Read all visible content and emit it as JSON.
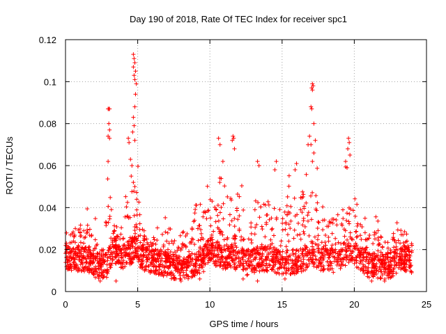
{
  "chart_data": {
    "type": "scatter",
    "title": "Day 190 of 2018, Rate Of TEC Index for receiver spc1",
    "xlabel": "GPS time / hours",
    "ylabel": "ROTI / TECUs",
    "xlim": [
      0,
      25
    ],
    "ylim": [
      0,
      0.12
    ],
    "x_ticks": [
      0,
      5,
      10,
      15,
      20,
      25
    ],
    "x_tick_labels": [
      "0",
      "5",
      "10",
      "15",
      "20",
      "25"
    ],
    "y_ticks": [
      0,
      0.02,
      0.04,
      0.06,
      0.08,
      0.1,
      0.12
    ],
    "y_tick_labels": [
      "0",
      "0.02",
      "0.04",
      "0.06",
      "0.08",
      "0.1",
      "0.12"
    ],
    "grid": true,
    "marker": "plus",
    "color": "#ff0000",
    "series": [
      {
        "name": "ROTI",
        "envelope": {
          "x": [
            0,
            0.5,
            1,
            1.3,
            2,
            2.5,
            2.9,
            3.3,
            3.6,
            4,
            4.4,
            4.8,
            5.2,
            5.6,
            6,
            6.6,
            7,
            7.6,
            8,
            8.6,
            9,
            9.6,
            10,
            10.5,
            11,
            11.6,
            12,
            12.5,
            13,
            13.4,
            14,
            14.5,
            15,
            15.4,
            16,
            16.5,
            17,
            17.4,
            18,
            18.6,
            19,
            19.5,
            19.7,
            20,
            20.4,
            21,
            21.5,
            22,
            22.5,
            23,
            23.5,
            24
          ],
          "peak": [
            0.03,
            0.034,
            0.045,
            0.04,
            0.038,
            0.022,
            0.087,
            0.045,
            0.035,
            0.03,
            0.073,
            0.113,
            0.04,
            0.03,
            0.026,
            0.034,
            0.036,
            0.03,
            0.028,
            0.04,
            0.045,
            0.048,
            0.056,
            0.05,
            0.072,
            0.06,
            0.074,
            0.04,
            0.045,
            0.062,
            0.06,
            0.05,
            0.045,
            0.055,
            0.06,
            0.07,
            0.099,
            0.065,
            0.045,
            0.05,
            0.045,
            0.065,
            0.072,
            0.055,
            0.04,
            0.035,
            0.04,
            0.03,
            0.028,
            0.037,
            0.035,
            0.028
          ],
          "base": [
            0.015,
            0.015,
            0.015,
            0.015,
            0.012,
            0.011,
            0.012,
            0.02,
            0.018,
            0.016,
            0.018,
            0.02,
            0.016,
            0.015,
            0.014,
            0.013,
            0.012,
            0.011,
            0.01,
            0.011,
            0.013,
            0.015,
            0.019,
            0.017,
            0.016,
            0.016,
            0.015,
            0.013,
            0.014,
            0.015,
            0.015,
            0.014,
            0.013,
            0.013,
            0.014,
            0.015,
            0.018,
            0.016,
            0.015,
            0.014,
            0.016,
            0.018,
            0.02,
            0.018,
            0.015,
            0.012,
            0.012,
            0.011,
            0.012,
            0.014,
            0.015,
            0.014
          ]
        },
        "points": [
          [
            3.0,
            0.087
          ],
          [
            2.95,
            0.087
          ],
          [
            3.05,
            0.087
          ],
          [
            3.0,
            0.08
          ],
          [
            3.05,
            0.077
          ],
          [
            2.95,
            0.074
          ],
          [
            3.05,
            0.073
          ],
          [
            2.95,
            0.062
          ],
          [
            4.7,
            0.113
          ],
          [
            4.75,
            0.111
          ],
          [
            4.8,
            0.109
          ],
          [
            4.7,
            0.107
          ],
          [
            4.85,
            0.105
          ],
          [
            4.75,
            0.103
          ],
          [
            4.8,
            0.101
          ],
          [
            4.9,
            0.099
          ],
          [
            4.85,
            0.094
          ],
          [
            4.8,
            0.088
          ],
          [
            4.7,
            0.083
          ],
          [
            4.75,
            0.079
          ],
          [
            4.65,
            0.076
          ],
          [
            4.8,
            0.072
          ],
          [
            4.35,
            0.073
          ],
          [
            4.4,
            0.071
          ],
          [
            4.5,
            0.063
          ],
          [
            4.6,
            0.06
          ],
          [
            4.55,
            0.055
          ],
          [
            4.7,
            0.052
          ],
          [
            4.8,
            0.05
          ],
          [
            17.1,
            0.099
          ],
          [
            17.15,
            0.098
          ],
          [
            17.05,
            0.097
          ],
          [
            17.1,
            0.096
          ],
          [
            17.0,
            0.088
          ],
          [
            17.05,
            0.087
          ],
          [
            17.2,
            0.08
          ],
          [
            17.3,
            0.072
          ],
          [
            16.9,
            0.074
          ],
          [
            17.0,
            0.07
          ],
          [
            17.2,
            0.066
          ],
          [
            17.1,
            0.062
          ],
          [
            16.8,
            0.07
          ],
          [
            11.6,
            0.074
          ],
          [
            11.65,
            0.073
          ],
          [
            11.55,
            0.072
          ],
          [
            11.7,
            0.068
          ],
          [
            10.6,
            0.073
          ],
          [
            10.7,
            0.07
          ],
          [
            10.9,
            0.062
          ],
          [
            19.6,
            0.073
          ],
          [
            19.65,
            0.071
          ],
          [
            19.55,
            0.068
          ],
          [
            19.7,
            0.065
          ],
          [
            19.4,
            0.062
          ],
          [
            19.5,
            0.059
          ],
          [
            13.3,
            0.062
          ],
          [
            13.4,
            0.06
          ],
          [
            14.6,
            0.062
          ],
          [
            14.5,
            0.058
          ],
          [
            16.0,
            0.061
          ],
          [
            15.9,
            0.058
          ],
          [
            2.4,
            0.005
          ],
          [
            3.5,
            0.005
          ],
          [
            7.5,
            0.006
          ],
          [
            8.0,
            0.005
          ],
          [
            9.3,
            0.006
          ],
          [
            12.3,
            0.006
          ],
          [
            13.3,
            0.005
          ],
          [
            15.2,
            0.006
          ],
          [
            21.2,
            0.005
          ],
          [
            22.1,
            0.005
          ]
        ]
      }
    ]
  }
}
